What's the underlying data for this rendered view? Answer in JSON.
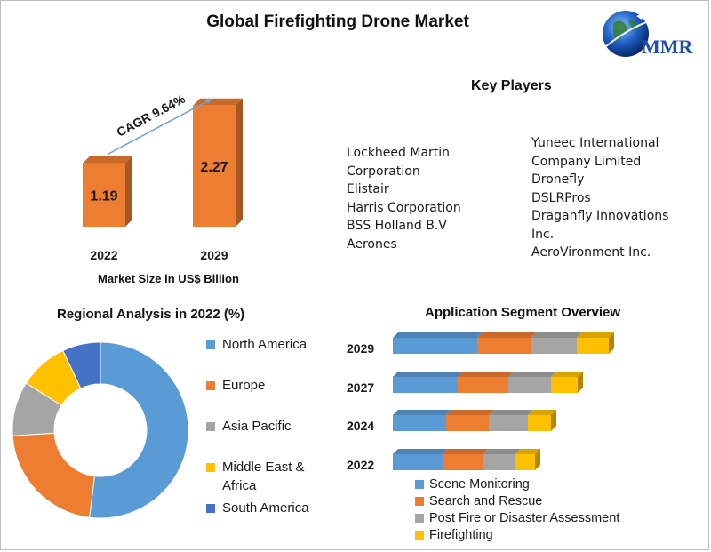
{
  "title": "Global Firefighting Drone Market",
  "logo": {
    "text": "MMR",
    "icon": "globe-icon"
  },
  "colors": {
    "blue": "#5b9bd5",
    "orange": "#ed7d31",
    "gray": "#a5a5a5",
    "yellow": "#ffc000",
    "darkblue": "#4472c4",
    "bar_orange": "#ed7d31"
  },
  "market_size": {
    "cagr_label": "CAGR 9.64%",
    "caption": "Market Size in US$ Billion"
  },
  "key_players": {
    "heading": "Key Players",
    "left": [
      "Lockheed Martin",
      "Corporation",
      "Elistair",
      "Harris Corporation",
      "BSS Holland B.V",
      "Aerones"
    ],
    "right": [
      "Yuneec International",
      "Company Limited",
      "Dronefly",
      "DSLRPros",
      "Draganfly Innovations",
      "Inc.",
      "AeroVironment  Inc."
    ]
  },
  "regional": {
    "title": "Regional Analysis in 2022 (%)"
  },
  "application": {
    "title": "Application Segment Overview"
  },
  "chart_data": [
    {
      "type": "bar",
      "categories": [
        "2022",
        "2029"
      ],
      "values": [
        1.19,
        2.27
      ],
      "title": "",
      "xlabel": "Market Size in US$ Billion",
      "ylabel": "",
      "annotation": "CAGR 9.64%"
    },
    {
      "type": "pie",
      "title": "Regional Analysis in 2022 (%)",
      "labels": [
        "North America",
        "Europe",
        "Asia Pacific",
        "Middle East & Africa",
        "South America"
      ],
      "values": [
        52,
        22,
        10,
        9,
        7
      ]
    },
    {
      "type": "bar",
      "orientation": "horizontal",
      "stacked": true,
      "title": "Application Segment Overview",
      "categories": [
        "2029",
        "2027",
        "2024",
        "2022"
      ],
      "series": [
        {
          "name": "Scene Monitoring",
          "values": [
            95,
            73,
            60,
            56
          ]
        },
        {
          "name": "Search and Rescue",
          "values": [
            60,
            57,
            48,
            45
          ]
        },
        {
          "name": "Post Fire or Disaster Assessment",
          "values": [
            52,
            48,
            44,
            37
          ]
        },
        {
          "name": "Firefighting",
          "values": [
            36,
            30,
            26,
            22
          ]
        }
      ]
    }
  ]
}
